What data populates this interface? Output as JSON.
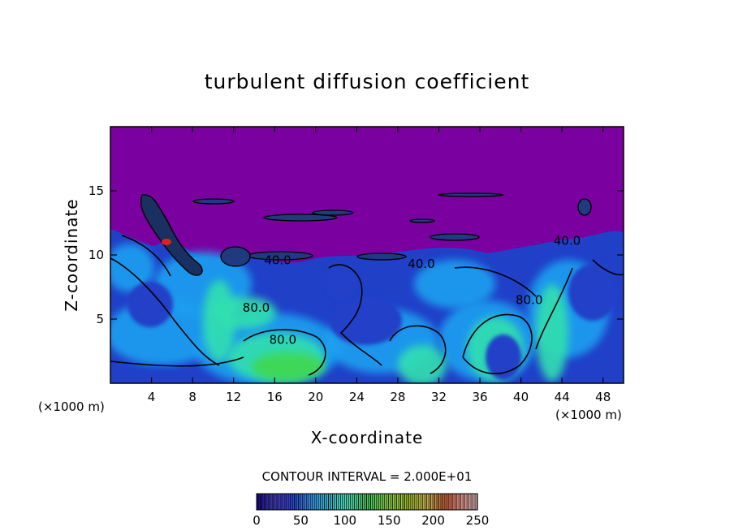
{
  "chart_data": {
    "type": "heatmap",
    "title": "turbulent diffusion coefficient",
    "xlabel": "X-coordinate",
    "ylabel": "Z-coordinate",
    "x_unit": "(×1000 m)",
    "x_range": [
      0,
      50
    ],
    "y_range": [
      0,
      20
    ],
    "x_ticks": [
      4,
      8,
      12,
      16,
      20,
      24,
      28,
      32,
      36,
      40,
      44,
      48
    ],
    "y_ticks": [
      5,
      10,
      15
    ],
    "contour_interval_label": "CONTOUR INTERVAL = 2.000E+01",
    "contour_interval": 20,
    "contour_labels": [
      {
        "text": "40.0",
        "x": 16.3,
        "y": 9.6
      },
      {
        "text": "40.0",
        "x": 30.3,
        "y": 9.3
      },
      {
        "text": "40.0",
        "x": 44.5,
        "y": 11.1
      },
      {
        "text": "80.0",
        "x": 14.2,
        "y": 5.9
      },
      {
        "text": "80.0",
        "x": 16.8,
        "y": 3.4
      },
      {
        "text": "80.0",
        "x": 40.8,
        "y": 6.5
      }
    ],
    "colorbar": {
      "min": 0,
      "max": 250,
      "ticks": [
        0,
        50,
        100,
        150,
        200,
        250
      ],
      "colors": [
        "#1a0a8c",
        "#2a2ad8",
        "#1e8cf0",
        "#38e0d0",
        "#3cd060",
        "#8ad028",
        "#c0c030",
        "#e06040",
        "#f0c0c0"
      ]
    },
    "field": {
      "background_value": 0,
      "top_color": "#7a00a0",
      "low_color": "#2040c8",
      "mid_color": "#1ea0f0",
      "high_color": "#30e0b0",
      "peak_color": "#40d850"
    }
  }
}
